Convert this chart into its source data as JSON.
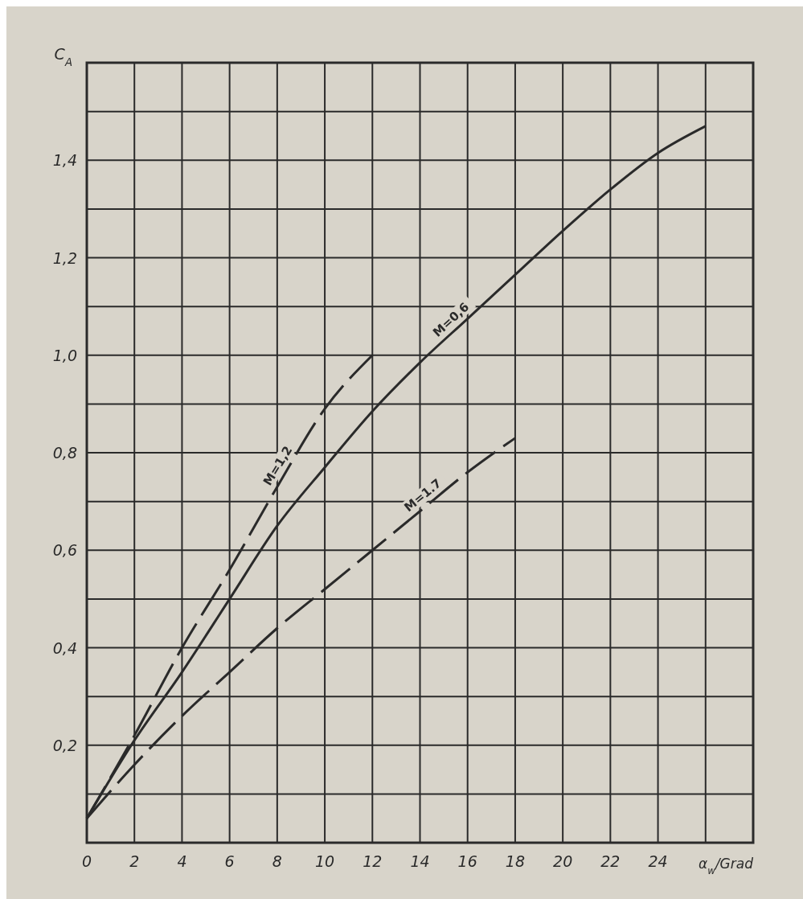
{
  "chart_data": {
    "type": "line",
    "ylabel": "C$_{A}$",
    "xlabel": "α$_{w}$/Grad",
    "xlim": [
      0,
      28
    ],
    "ylim": [
      0,
      1.6
    ],
    "xticks": [
      0,
      2,
      4,
      6,
      8,
      10,
      {
        "value": 12,
        "label": "12"
      },
      14,
      16,
      18,
      20,
      22,
      24,
      {
        "value": 26,
        "label": null
      },
      {
        "value": 28,
        "label": null
      }
    ],
    "yticks": [
      {
        "value": 0,
        "label": null
      },
      {
        "value": 0.1,
        "label": null
      },
      {
        "value": 0.2,
        "label": "0,2"
      },
      {
        "value": 0.3,
        "label": null
      },
      {
        "value": 0.4,
        "label": "0,4"
      },
      {
        "value": 0.5,
        "label": null
      },
      {
        "value": 0.6,
        "label": "0,6"
      },
      {
        "value": 0.7,
        "label": null
      },
      {
        "value": 0.8,
        "label": "0,8"
      },
      {
        "value": 0.9,
        "label": null
      },
      {
        "value": 1.0,
        "label": "1,0"
      },
      {
        "value": 1.1,
        "label": null
      },
      {
        "value": 1.2,
        "label": "1,2"
      },
      {
        "value": 1.3,
        "label": null
      },
      {
        "value": 1.4,
        "label": "1,4"
      },
      {
        "value": 1.5,
        "label": null
      },
      {
        "value": 1.6,
        "label": null
      }
    ],
    "grid": true,
    "marker": "none",
    "series": [
      {
        "name": "M=0,6",
        "color": "#2a2a2a",
        "line_style": "solid",
        "x": [
          0,
          2,
          4,
          6,
          8,
          10,
          12,
          14,
          16,
          18,
          20,
          22,
          24,
          26
        ],
        "values": [
          0.05,
          0.21,
          0.35,
          0.5,
          0.65,
          0.77,
          0.885,
          0.985,
          1.075,
          1.165,
          1.255,
          1.34,
          1.415,
          1.47
        ]
      },
      {
        "name": "M=1,2",
        "color": "#2a2a2a",
        "line_style": "dashed",
        "x": [
          0,
          2,
          4,
          6,
          8,
          10,
          12
        ],
        "values": [
          0.05,
          0.22,
          0.4,
          0.56,
          0.73,
          0.89,
          1.0
        ]
      },
      {
        "name": "M=1.7",
        "color": "#2a2a2a",
        "line_style": "dashed",
        "x": [
          0,
          2,
          4,
          6,
          8,
          10,
          12,
          14,
          16,
          18
        ],
        "values": [
          0.05,
          0.16,
          0.26,
          0.35,
          0.44,
          0.52,
          0.6,
          0.68,
          0.76,
          0.83
        ]
      }
    ]
  }
}
